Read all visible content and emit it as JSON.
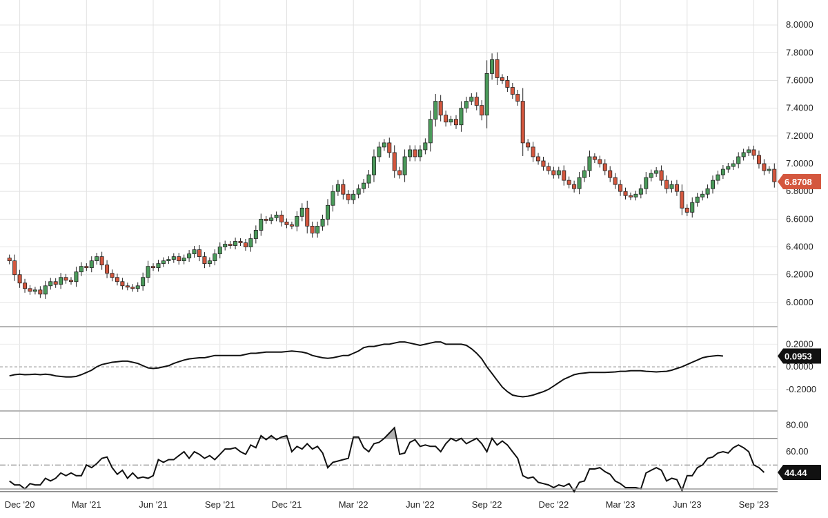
{
  "chart_data": [
    {
      "type": "candlestick",
      "panel": "price",
      "ylim": [
        5.88,
        8.12
      ],
      "yticks": [
        6.0,
        6.2,
        6.4,
        6.6,
        6.8,
        7.0,
        7.2,
        7.4,
        7.6,
        7.8,
        8.0
      ],
      "ytick_labels": [
        "6.0000",
        "6.2000",
        "6.4000",
        "6.6000",
        "6.8000",
        "7.0000",
        "7.2000",
        "7.4000",
        "7.6000",
        "7.8000",
        "8.0000"
      ],
      "last_value_label": "6.8708",
      "last_value": 6.8708,
      "up_color": "#4a9a5a",
      "down_color": "#d4573e",
      "closes": [
        6.3,
        6.2,
        6.14,
        6.1,
        6.08,
        6.09,
        6.06,
        6.12,
        6.15,
        6.13,
        6.18,
        6.16,
        6.15,
        6.22,
        6.26,
        6.25,
        6.3,
        6.33,
        6.27,
        6.21,
        6.18,
        6.15,
        6.12,
        6.11,
        6.1,
        6.12,
        6.18,
        6.26,
        6.25,
        6.28,
        6.3,
        6.31,
        6.33,
        6.3,
        6.32,
        6.35,
        6.38,
        6.33,
        6.28,
        6.3,
        6.35,
        6.4,
        6.42,
        6.41,
        6.44,
        6.43,
        6.4,
        6.46,
        6.52,
        6.6,
        6.59,
        6.61,
        6.63,
        6.58,
        6.56,
        6.55,
        6.62,
        6.68,
        6.55,
        6.5,
        6.55,
        6.6,
        6.7,
        6.8,
        6.85,
        6.78,
        6.74,
        6.78,
        6.82,
        6.86,
        6.92,
        7.05,
        7.12,
        7.15,
        7.08,
        6.95,
        6.92,
        7.05,
        7.1,
        7.05,
        7.1,
        7.15,
        7.32,
        7.45,
        7.35,
        7.3,
        7.32,
        7.28,
        7.4,
        7.45,
        7.48,
        7.42,
        7.35,
        7.65,
        7.75,
        7.62,
        7.6,
        7.55,
        7.5,
        7.45,
        7.15,
        7.12,
        7.05,
        7.02,
        6.98,
        6.95,
        6.92,
        6.95,
        6.88,
        6.85,
        6.82,
        6.9,
        6.95,
        7.05,
        7.03,
        7.0,
        6.95,
        6.9,
        6.85,
        6.8,
        6.77,
        6.76,
        6.78,
        6.82,
        6.9,
        6.93,
        6.95,
        6.88,
        6.82,
        6.85,
        6.8,
        6.68,
        6.65,
        6.72,
        6.76,
        6.78,
        6.82,
        6.88,
        6.92,
        6.96,
        6.98,
        7.0,
        7.05,
        7.08,
        7.1,
        7.06,
        7.0,
        6.95,
        6.96,
        6.87
      ],
      "x_ticks": [
        {
          "label": "Dec '20",
          "index": 2
        },
        {
          "label": "Mar '21",
          "index": 15
        },
        {
          "label": "Jun '21",
          "index": 28
        },
        {
          "label": "Sep '21",
          "index": 41
        },
        {
          "label": "Dec '21",
          "index": 54
        },
        {
          "label": "Mar '22",
          "index": 67
        },
        {
          "label": "Jun '22",
          "index": 80
        },
        {
          "label": "Sep '22",
          "index": 93
        },
        {
          "label": "Dec '22",
          "index": 106
        },
        {
          "label": "Mar '23",
          "index": 119
        },
        {
          "label": "Jun '23",
          "index": 132
        },
        {
          "label": "Sep '23",
          "index": 145
        }
      ]
    },
    {
      "type": "line",
      "panel": "oscillator",
      "ylim": [
        -0.36,
        0.3
      ],
      "yticks": [
        -0.2,
        0.0,
        0.2
      ],
      "ytick_labels": [
        "-0.2000",
        "0.0000",
        "0.2000"
      ],
      "zero_line": 0.0,
      "last_value_label": "0.0953",
      "last_value": 0.0953,
      "values": [
        -0.08,
        -0.07,
        -0.065,
        -0.07,
        -0.068,
        -0.065,
        -0.07,
        -0.065,
        -0.07,
        -0.08,
        -0.085,
        -0.09,
        -0.09,
        -0.085,
        -0.07,
        -0.05,
        -0.03,
        0.0,
        0.02,
        0.03,
        0.04,
        0.045,
        0.05,
        0.05,
        0.04,
        0.03,
        0.01,
        -0.01,
        -0.015,
        -0.01,
        0.0,
        0.01,
        0.03,
        0.045,
        0.06,
        0.07,
        0.075,
        0.08,
        0.08,
        0.09,
        0.1,
        0.1,
        0.1,
        0.1,
        0.1,
        0.1,
        0.11,
        0.12,
        0.12,
        0.125,
        0.13,
        0.13,
        0.13,
        0.13,
        0.135,
        0.14,
        0.135,
        0.13,
        0.12,
        0.1,
        0.09,
        0.08,
        0.075,
        0.08,
        0.09,
        0.1,
        0.1,
        0.12,
        0.14,
        0.17,
        0.18,
        0.18,
        0.19,
        0.2,
        0.2,
        0.21,
        0.22,
        0.22,
        0.21,
        0.2,
        0.19,
        0.2,
        0.21,
        0.22,
        0.22,
        0.2,
        0.2,
        0.2,
        0.2,
        0.19,
        0.16,
        0.12,
        0.07,
        0.0,
        -0.06,
        -0.12,
        -0.18,
        -0.22,
        -0.25,
        -0.26,
        -0.265,
        -0.26,
        -0.25,
        -0.235,
        -0.22,
        -0.2,
        -0.17,
        -0.14,
        -0.11,
        -0.09,
        -0.07,
        -0.06,
        -0.055,
        -0.05,
        -0.05,
        -0.05,
        -0.05,
        -0.048,
        -0.045,
        -0.04,
        -0.04,
        -0.035,
        -0.035,
        -0.035,
        -0.04,
        -0.042,
        -0.045,
        -0.042,
        -0.04,
        -0.03,
        -0.015,
        0.0,
        0.02,
        0.04,
        0.06,
        0.08,
        0.09,
        0.095,
        0.1,
        0.095
      ]
    },
    {
      "type": "line",
      "panel": "rsi",
      "ylim": [
        33,
        88
      ],
      "yticks": [
        60,
        80
      ],
      "ytick_labels": [
        "60.00",
        "80.00"
      ],
      "upper_line": 70,
      "mid_line": 50,
      "lower_line": 30,
      "last_value_label": "44.44",
      "last_value": 44.44,
      "values": [
        38,
        35,
        35,
        32,
        36,
        35,
        35,
        40,
        38,
        40,
        44,
        42,
        44,
        42,
        42,
        50,
        48,
        51,
        55,
        56,
        48,
        43,
        46,
        40,
        44,
        40,
        41,
        40,
        42,
        54,
        52,
        54,
        54,
        57,
        60,
        55,
        60,
        58,
        55,
        57,
        54,
        58,
        62,
        62,
        63,
        60,
        58,
        65,
        63,
        72,
        69,
        72,
        69,
        71,
        72,
        60,
        64,
        62,
        66,
        62,
        64,
        59,
        48,
        52,
        53,
        54,
        55,
        71,
        71,
        63,
        60,
        66,
        67,
        70,
        74,
        78,
        58,
        59,
        67,
        69,
        64,
        65,
        64,
        64,
        60,
        66,
        70,
        68,
        70,
        66,
        68,
        70,
        66,
        60,
        70,
        65,
        68,
        65,
        60,
        55,
        42,
        40,
        41,
        37,
        36,
        35,
        33,
        35,
        34,
        36,
        30,
        37,
        38,
        47,
        47,
        48,
        45,
        43,
        38,
        36,
        33,
        33,
        33,
        32,
        44,
        46,
        48,
        46,
        38,
        40,
        39,
        31,
        42,
        42,
        48,
        50,
        55,
        56,
        59,
        60,
        59,
        63,
        65,
        63,
        60,
        50,
        48,
        44.44
      ]
    }
  ]
}
